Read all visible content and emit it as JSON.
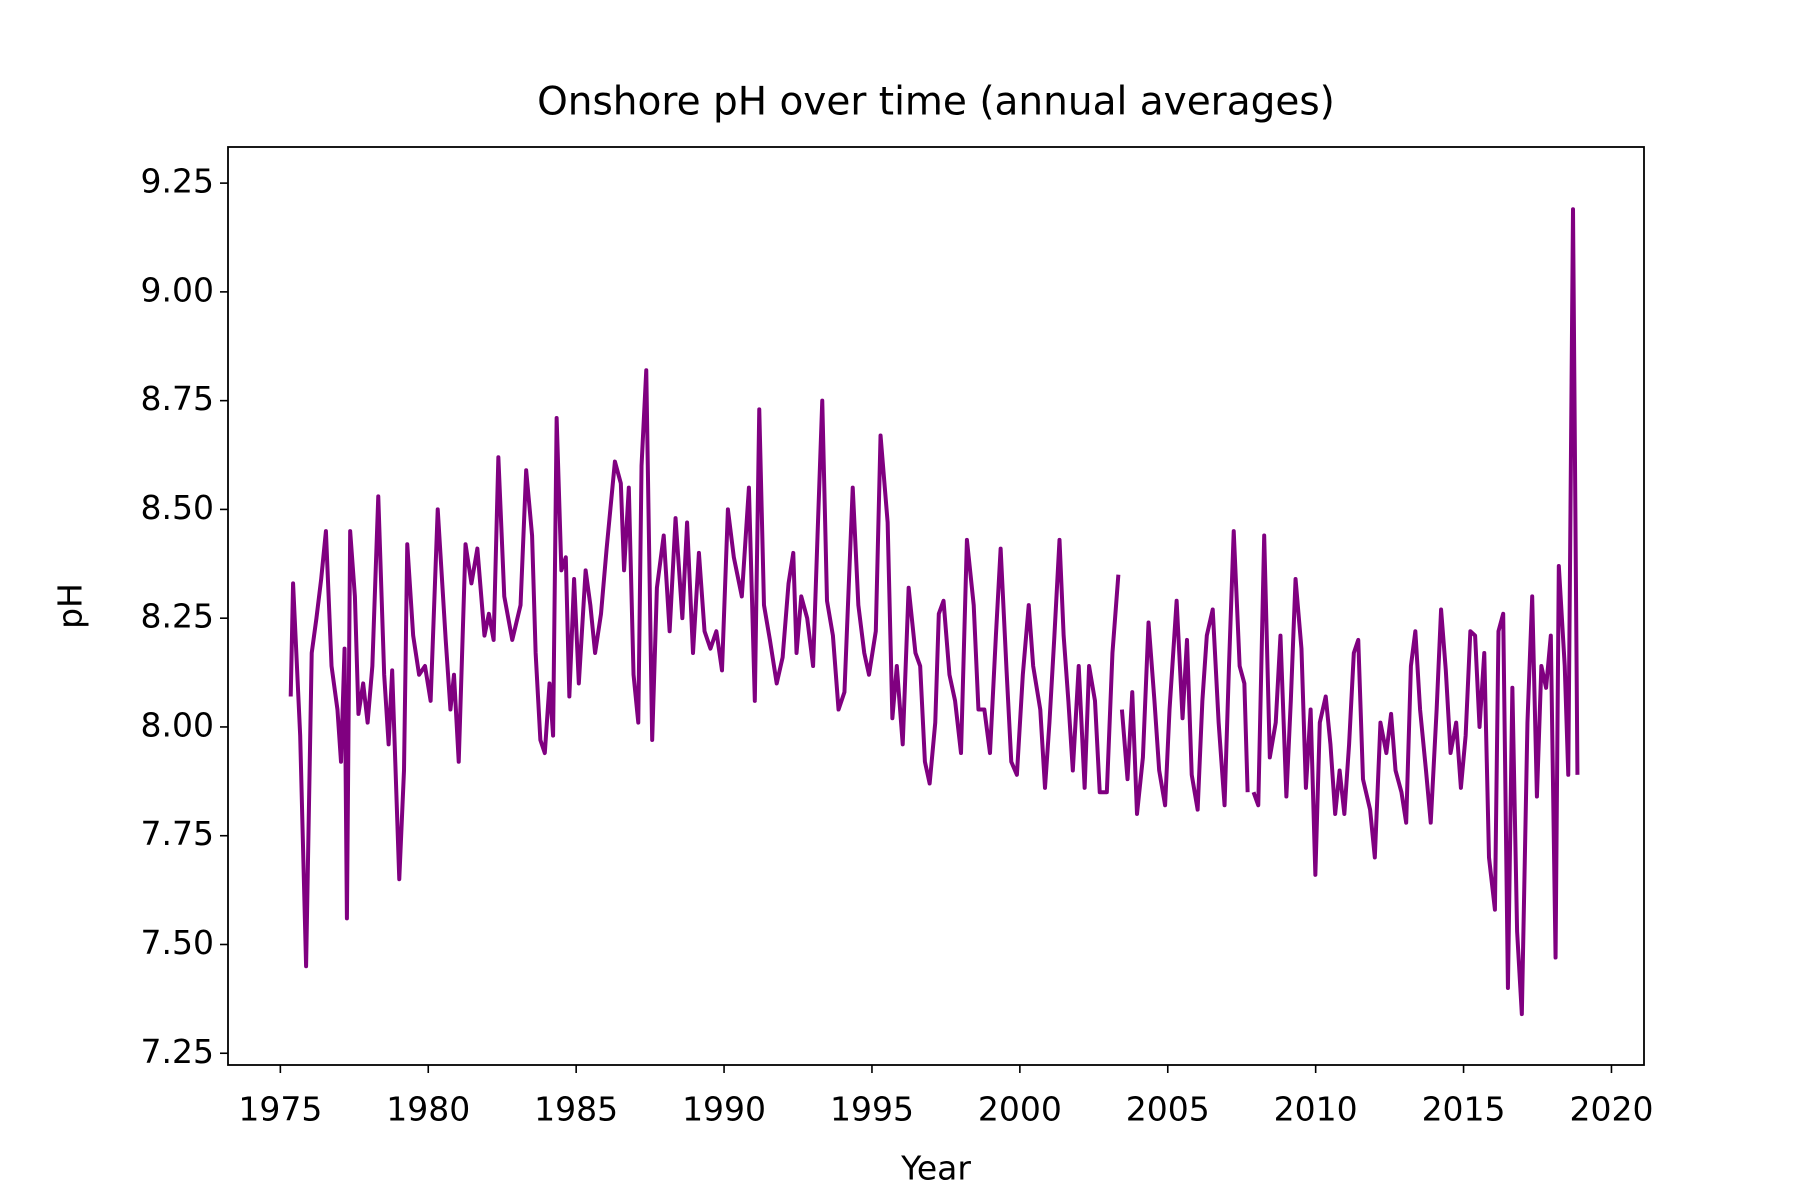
{
  "chart_data": {
    "type": "line",
    "title": "Onshore pH over time (annual averages)",
    "x_label": "Year",
    "y_label": "pH",
    "x": [
      1975.35,
      1975.43,
      1975.67,
      1975.87,
      1976.06,
      1976.22,
      1976.38,
      1976.54,
      1976.73,
      1976.93,
      1977.05,
      1977.17,
      1977.25,
      1977.36,
      1977.52,
      1977.64,
      1977.8,
      1977.95,
      1978.11,
      1978.31,
      1978.51,
      1978.66,
      1978.78,
      1979.02,
      1979.18,
      1979.29,
      1979.49,
      1979.69,
      1979.89,
      1980.08,
      1980.32,
      1980.59,
      1980.75,
      1980.87,
      1981.03,
      1981.26,
      1981.46,
      1981.66,
      1981.9,
      1982.05,
      1982.21,
      1982.37,
      1982.57,
      1982.84,
      1983.12,
      1983.31,
      1983.51,
      1983.63,
      1983.79,
      1983.94,
      1984.1,
      1984.22,
      1984.34,
      1984.5,
      1984.65,
      1984.77,
      1984.93,
      1985.09,
      1985.32,
      1985.48,
      1985.64,
      1985.84,
      1986.03,
      1986.31,
      1986.51,
      1986.62,
      1986.78,
      1986.94,
      1987.1,
      1987.21,
      1987.37,
      1987.57,
      1987.73,
      1987.96,
      1988.16,
      1988.36,
      1988.59,
      1988.75,
      1988.95,
      1989.15,
      1989.34,
      1989.54,
      1989.74,
      1989.93,
      1990.13,
      1990.33,
      1990.6,
      1990.84,
      1991.04,
      1991.19,
      1991.35,
      1991.55,
      1991.78,
      1991.98,
      1992.18,
      1992.34,
      1992.45,
      1992.61,
      1992.81,
      1993.01,
      1993.16,
      1993.32,
      1993.48,
      1993.68,
      1993.87,
      1994.07,
      1994.35,
      1994.54,
      1994.74,
      1994.9,
      1995.13,
      1995.29,
      1995.53,
      1995.69,
      1995.84,
      1996.04,
      1996.24,
      1996.47,
      1996.63,
      1996.79,
      1996.95,
      1997.14,
      1997.26,
      1997.42,
      1997.62,
      1997.81,
      1998.01,
      1998.21,
      1998.44,
      1998.6,
      1998.8,
      1998.99,
      1999.19,
      1999.35,
      1999.55,
      1999.71,
      1999.9,
      2000.1,
      2000.3,
      2000.45,
      2000.69,
      2000.85,
      2001.0,
      2001.16,
      2001.34,
      2001.48,
      2001.64,
      2001.79,
      2001.99,
      2002.19,
      2002.34,
      2002.54,
      2002.7,
      2002.94,
      2003.13,
      2003.33,
      2003.39,
      2003.45,
      2003.64,
      2003.8,
      2003.96,
      2004.16,
      2004.35,
      2004.55,
      2004.71,
      2004.91,
      2005.06,
      2005.3,
      2005.5,
      2005.65,
      2005.81,
      2006.01,
      2006.17,
      2006.32,
      2006.52,
      2006.72,
      2006.92,
      2007.07,
      2007.23,
      2007.43,
      2007.59,
      2007.7,
      2007.8,
      2007.9,
      2008.06,
      2008.26,
      2008.45,
      2008.65,
      2008.81,
      2009.01,
      2009.16,
      2009.32,
      2009.52,
      2009.67,
      2009.83,
      2009.99,
      2010.14,
      2010.34,
      2010.5,
      2010.66,
      2010.81,
      2010.97,
      2011.13,
      2011.29,
      2011.44,
      2011.6,
      2011.84,
      2012.0,
      2012.19,
      2012.39,
      2012.55,
      2012.7,
      2012.9,
      2013.06,
      2013.22,
      2013.37,
      2013.53,
      2013.73,
      2013.89,
      2014.09,
      2014.24,
      2014.4,
      2014.56,
      2014.75,
      2014.91,
      2015.07,
      2015.23,
      2015.39,
      2015.54,
      2015.7,
      2015.86,
      2016.06,
      2016.18,
      2016.34,
      2016.5,
      2016.65,
      2016.81,
      2016.97,
      2017.16,
      2017.32,
      2017.48,
      2017.63,
      2017.79,
      2017.95,
      2018.11,
      2018.22,
      2018.42,
      2018.54,
      2018.7,
      2018.85
    ],
    "series": [
      {
        "name": "pH",
        "color": "#800080",
        "values": [
          8.07,
          8.33,
          7.98,
          7.45,
          8.17,
          8.25,
          8.34,
          8.45,
          8.14,
          8.04,
          7.92,
          8.18,
          7.56,
          8.45,
          8.3,
          8.03,
          8.1,
          8.01,
          8.14,
          8.53,
          8.12,
          7.96,
          8.13,
          7.65,
          7.9,
          8.42,
          8.21,
          8.12,
          8.14,
          8.06,
          8.5,
          8.2,
          8.04,
          8.12,
          7.92,
          8.42,
          8.33,
          8.41,
          8.21,
          8.26,
          8.2,
          8.62,
          8.3,
          8.2,
          8.28,
          8.59,
          8.44,
          8.17,
          7.97,
          7.94,
          8.1,
          7.98,
          8.71,
          8.36,
          8.39,
          8.07,
          8.34,
          8.1,
          8.36,
          8.28,
          8.17,
          8.26,
          8.41,
          8.61,
          8.56,
          8.36,
          8.55,
          8.12,
          8.01,
          8.6,
          8.82,
          7.97,
          8.32,
          8.44,
          8.22,
          8.48,
          8.25,
          8.47,
          8.17,
          8.4,
          8.22,
          8.18,
          8.22,
          8.13,
          8.5,
          8.39,
          8.3,
          8.55,
          8.06,
          8.73,
          8.28,
          8.2,
          8.1,
          8.16,
          8.33,
          8.4,
          8.17,
          8.3,
          8.25,
          8.14,
          8.44,
          8.75,
          8.29,
          8.21,
          8.04,
          8.08,
          8.55,
          8.28,
          8.17,
          8.12,
          8.22,
          8.67,
          8.47,
          8.02,
          8.14,
          7.96,
          8.32,
          8.17,
          8.14,
          7.92,
          7.87,
          8.01,
          8.26,
          8.29,
          8.12,
          8.06,
          7.94,
          8.43,
          8.28,
          8.04,
          8.04,
          7.94,
          8.21,
          8.41,
          8.13,
          7.92,
          7.89,
          8.12,
          8.28,
          8.14,
          8.04,
          7.86,
          8.01,
          8.2,
          8.43,
          8.21,
          8.06,
          7.9,
          8.14,
          7.86,
          8.14,
          8.06,
          7.85,
          7.85,
          8.17,
          8.35,
          null,
          8.04,
          7.88,
          8.08,
          7.8,
          7.93,
          8.24,
          8.06,
          7.9,
          7.82,
          8.04,
          8.29,
          8.02,
          8.2,
          7.89,
          7.81,
          8.06,
          8.21,
          8.27,
          8.01,
          7.82,
          8.14,
          8.45,
          8.14,
          8.1,
          7.85,
          null,
          7.85,
          7.82,
          8.44,
          7.93,
          8.01,
          8.21,
          7.84,
          8.06,
          8.34,
          8.18,
          7.86,
          8.04,
          7.66,
          8.01,
          8.07,
          7.96,
          7.8,
          7.9,
          7.8,
          7.96,
          8.17,
          8.2,
          7.88,
          7.81,
          7.7,
          8.01,
          7.94,
          8.03,
          7.9,
          7.85,
          7.78,
          8.14,
          8.22,
          8.04,
          7.9,
          7.78,
          8.04,
          8.27,
          8.13,
          7.94,
          8.01,
          7.86,
          7.98,
          8.22,
          8.21,
          8.0,
          8.17,
          7.7,
          7.58,
          8.22,
          8.26,
          7.4,
          8.09,
          7.53,
          7.34,
          8.01,
          8.3,
          7.84,
          8.14,
          8.09,
          8.21,
          7.47,
          8.37,
          8.14,
          7.89,
          9.19,
          7.89
        ]
      }
    ],
    "xlim": [
      1973.23,
      2021.1
    ],
    "ylim": [
      7.223,
      9.333
    ],
    "xticks": [
      1975,
      1980,
      1985,
      1990,
      1995,
      2000,
      2005,
      2010,
      2015,
      2020
    ],
    "yticks": [
      7.25,
      {
        "value": 7.5,
        "label": "7.50"
      },
      7.75,
      {
        "value": 8.0,
        "label": "8.00"
      },
      8.25,
      {
        "value": 8.5,
        "label": "8.50"
      },
      8.75,
      {
        "value": 9.0,
        "label": "9.00"
      },
      9.25
    ],
    "grid": false
  }
}
